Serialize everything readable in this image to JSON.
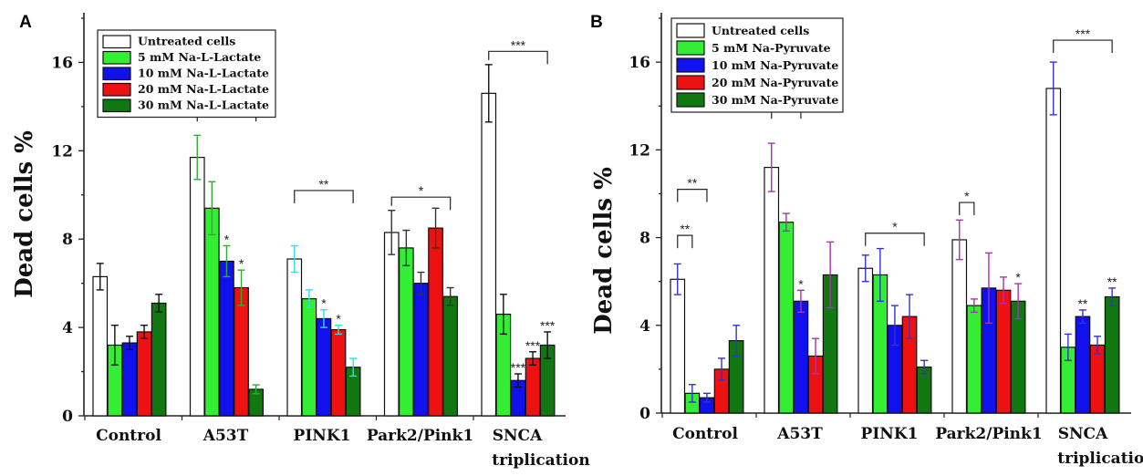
{
  "chart_data": [
    {
      "type": "bar",
      "panel_label": "A",
      "ylabel": "Dead cells %",
      "ylim": [
        0,
        18
      ],
      "yticks": [
        "0",
        "4",
        "8",
        "12",
        "16"
      ],
      "categories": [
        "Control",
        "A53T",
        "PINK1",
        "Park2/Pink1",
        "SNCA triplication"
      ],
      "category_labels": [
        "Control",
        "A53T",
        "PINK1",
        "Park2/Pink1",
        "SNCA",
        "triplication"
      ],
      "legend_position": "top-left",
      "series": [
        {
          "name": "Untreated cells",
          "color": "#ffffff",
          "values": [
            6.3,
            11.7,
            7.1,
            8.3,
            14.6
          ],
          "errors": [
            0.6,
            1.0,
            0.6,
            1.0,
            1.3
          ]
        },
        {
          "name": "5 mM  Na-L-Lactate",
          "color": "#33ee33",
          "values": [
            3.2,
            9.4,
            5.3,
            7.6,
            4.6
          ],
          "errors": [
            0.9,
            1.2,
            0.4,
            0.8,
            0.9
          ]
        },
        {
          "name": "10 mM  Na-L-Lactate",
          "color": "#1111ee",
          "values": [
            3.3,
            7.0,
            4.4,
            6.0,
            1.6
          ],
          "errors": [
            0.3,
            0.7,
            0.4,
            0.5,
            0.3
          ]
        },
        {
          "name": "20 mM  Na-L-Lactate",
          "color": "#ee1111",
          "values": [
            3.8,
            5.8,
            3.9,
            8.5,
            2.6
          ],
          "errors": [
            0.3,
            0.8,
            0.2,
            0.9,
            0.3
          ]
        },
        {
          "name": "30 mM  Na-L-Lactate",
          "color": "#117711",
          "values": [
            5.1,
            1.2,
            2.2,
            5.4,
            3.2
          ],
          "errors": [
            0.4,
            0.2,
            0.4,
            0.4,
            0.6
          ]
        }
      ],
      "error_bar_colors": [
        "#111111",
        "#33aa33",
        "#33dddd",
        "#333333",
        "#111111"
      ],
      "point_marks": [
        {
          "category": 1,
          "series": 2,
          "text": "*"
        },
        {
          "category": 1,
          "series": 3,
          "text": "*"
        },
        {
          "category": 2,
          "series": 2,
          "text": "*"
        },
        {
          "category": 2,
          "series": 3,
          "text": "*"
        },
        {
          "category": 4,
          "series": 2,
          "text": "***"
        },
        {
          "category": 4,
          "series": 3,
          "text": "***"
        },
        {
          "category": 4,
          "series": 4,
          "text": "***"
        }
      ],
      "brackets": [
        {
          "category": 1,
          "from": 0,
          "to": 4,
          "level": 13.9,
          "text": "***"
        },
        {
          "category": 2,
          "from": 0,
          "to": 4,
          "level": 10.2,
          "text": "**"
        },
        {
          "category": 3,
          "from": 0,
          "to": 4,
          "level": 9.9,
          "text": "*"
        },
        {
          "category": 4,
          "from": 0,
          "to": 4,
          "level": 16.5,
          "text": "***"
        }
      ]
    },
    {
      "type": "bar",
      "panel_label": "B",
      "ylabel": "Dead cells %",
      "ylim": [
        0,
        18
      ],
      "yticks": [
        "0",
        "4",
        "8",
        "12",
        "16"
      ],
      "categories": [
        "Control",
        "A53T",
        "PINK1",
        "Park2/Pink1",
        "SNCA triplication"
      ],
      "category_labels": [
        "Control",
        "A53T",
        "PINK1",
        "Park2/Pink1",
        "SNCA",
        "triplication"
      ],
      "legend_position": "top-left",
      "series": [
        {
          "name": "Untreated cells",
          "color": "#ffffff",
          "values": [
            6.1,
            11.2,
            6.6,
            7.9,
            14.8
          ],
          "errors": [
            0.7,
            1.1,
            0.6,
            0.9,
            1.2
          ]
        },
        {
          "name": "5 mM  Na-Pyruvate",
          "color": "#33ee33",
          "values": [
            0.9,
            8.7,
            6.3,
            4.9,
            3.0
          ],
          "errors": [
            0.4,
            0.4,
            1.2,
            0.3,
            0.6
          ]
        },
        {
          "name": "10 mM  Na-Pyruvate",
          "color": "#1111ee",
          "values": [
            0.7,
            5.1,
            4.0,
            5.7,
            4.4
          ],
          "errors": [
            0.2,
            0.5,
            0.9,
            1.6,
            0.3
          ]
        },
        {
          "name": "20 mM  Na-Pyruvate",
          "color": "#ee1111",
          "values": [
            2.0,
            2.6,
            4.4,
            5.6,
            3.1
          ],
          "errors": [
            0.5,
            0.8,
            1.0,
            0.6,
            0.4
          ]
        },
        {
          "name": "30 mM  Na-Pyruvate",
          "color": "#117711",
          "values": [
            3.3,
            6.3,
            2.1,
            5.1,
            5.3
          ],
          "errors": [
            0.7,
            1.5,
            0.3,
            0.8,
            0.4
          ]
        }
      ],
      "error_bar_colors": [
        "#3333cc",
        "#aa33aa",
        "#3333cc",
        "#aa33aa",
        "#3333cc"
      ],
      "point_marks": [
        {
          "category": 1,
          "series": 2,
          "text": "*"
        },
        {
          "category": 3,
          "series": 4,
          "text": "*"
        },
        {
          "category": 4,
          "series": 2,
          "text": "**"
        },
        {
          "category": 4,
          "series": 4,
          "text": "**"
        }
      ],
      "brackets": [
        {
          "category": 0,
          "from": 0,
          "to": 1,
          "level": 8.1,
          "text": "**"
        },
        {
          "category": 0,
          "from": 0,
          "to": 2,
          "level": 10.2,
          "text": "**"
        },
        {
          "category": 1,
          "from": 0,
          "to": 2,
          "level": 14.0,
          "text": "**"
        },
        {
          "category": 2,
          "from": 0,
          "to": 4,
          "level": 8.2,
          "text": "*"
        },
        {
          "category": 3,
          "from": 0,
          "to": 1,
          "level": 9.6,
          "text": "*"
        },
        {
          "category": 4,
          "from": 0,
          "to": 4,
          "level": 17.0,
          "text": "***"
        }
      ]
    }
  ]
}
